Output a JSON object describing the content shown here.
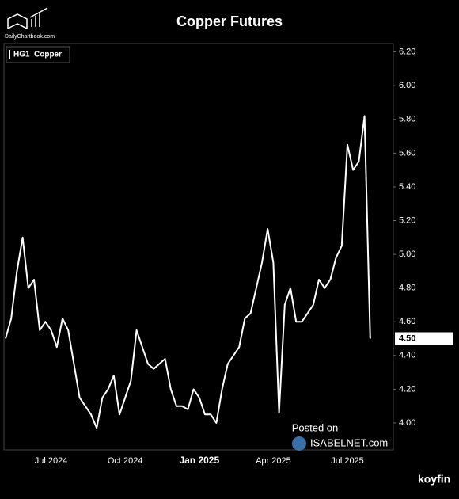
{
  "chart_data": {
    "type": "line",
    "title": "Copper Futures",
    "source_logo": "DailyChartbook.com",
    "watermark": [
      "Posted on",
      "ISABELNET.com"
    ],
    "brand": "koyfin",
    "legend": {
      "ticker": "HG1",
      "name": "Copper"
    },
    "categories": [
      null,
      null,
      null,
      null,
      null,
      null,
      null,
      null,
      "Jul 2024",
      null,
      null,
      null,
      null,
      null,
      null,
      null,
      null,
      null,
      null,
      null,
      null,
      "Oct 2024",
      null,
      null,
      null,
      null,
      null,
      null,
      null,
      null,
      null,
      null,
      null,
      null,
      "Jan 2025",
      null,
      null,
      null,
      null,
      null,
      null,
      null,
      null,
      null,
      null,
      null,
      null,
      "Apr 2025",
      null,
      null,
      null,
      null,
      null,
      null,
      null,
      null,
      null,
      null,
      null,
      null,
      "Jul 2025",
      null,
      null,
      null,
      null
    ],
    "series": [
      {
        "name": "Copper",
        "color": "#ffffff",
        "values": [
          4.5,
          4.62,
          4.9,
          5.1,
          4.8,
          4.85,
          4.55,
          4.6,
          4.55,
          4.45,
          4.62,
          4.55,
          4.35,
          4.15,
          4.1,
          4.05,
          3.97,
          4.15,
          4.2,
          4.28,
          4.05,
          4.15,
          4.25,
          4.55,
          4.45,
          4.35,
          4.32,
          4.35,
          4.38,
          4.2,
          4.1,
          4.1,
          4.08,
          4.2,
          4.15,
          4.05,
          4.05,
          4.0,
          4.2,
          4.35,
          4.4,
          4.45,
          4.62,
          4.65,
          4.8,
          4.95,
          5.15,
          4.95,
          4.06,
          4.7,
          4.8,
          4.6,
          4.6,
          4.65,
          4.7,
          4.85,
          4.8,
          4.85,
          4.98,
          5.05,
          5.65,
          5.5,
          5.55,
          5.82,
          4.5
        ]
      }
    ],
    "last_value_label": {
      "value": 4.5,
      "label": "4.50"
    },
    "ylim": [
      3.84,
      6.25
    ],
    "yticks": [
      {
        "value": 4.0,
        "label": "4.00"
      },
      {
        "value": 4.2,
        "label": "4.20"
      },
      {
        "value": 4.4,
        "label": "4.40"
      },
      {
        "value": 4.6,
        "label": "4.60"
      },
      {
        "value": 4.8,
        "label": "4.80"
      },
      {
        "value": 5.0,
        "label": "5.00"
      },
      {
        "value": 5.2,
        "label": "5.20"
      },
      {
        "value": 5.4,
        "label": "5.40"
      },
      {
        "value": 5.6,
        "label": "5.60"
      },
      {
        "value": 5.8,
        "label": "5.80"
      },
      {
        "value": 6.0,
        "label": "6.00"
      },
      {
        "value": 6.2,
        "label": "6.20"
      }
    ],
    "grid": false
  }
}
